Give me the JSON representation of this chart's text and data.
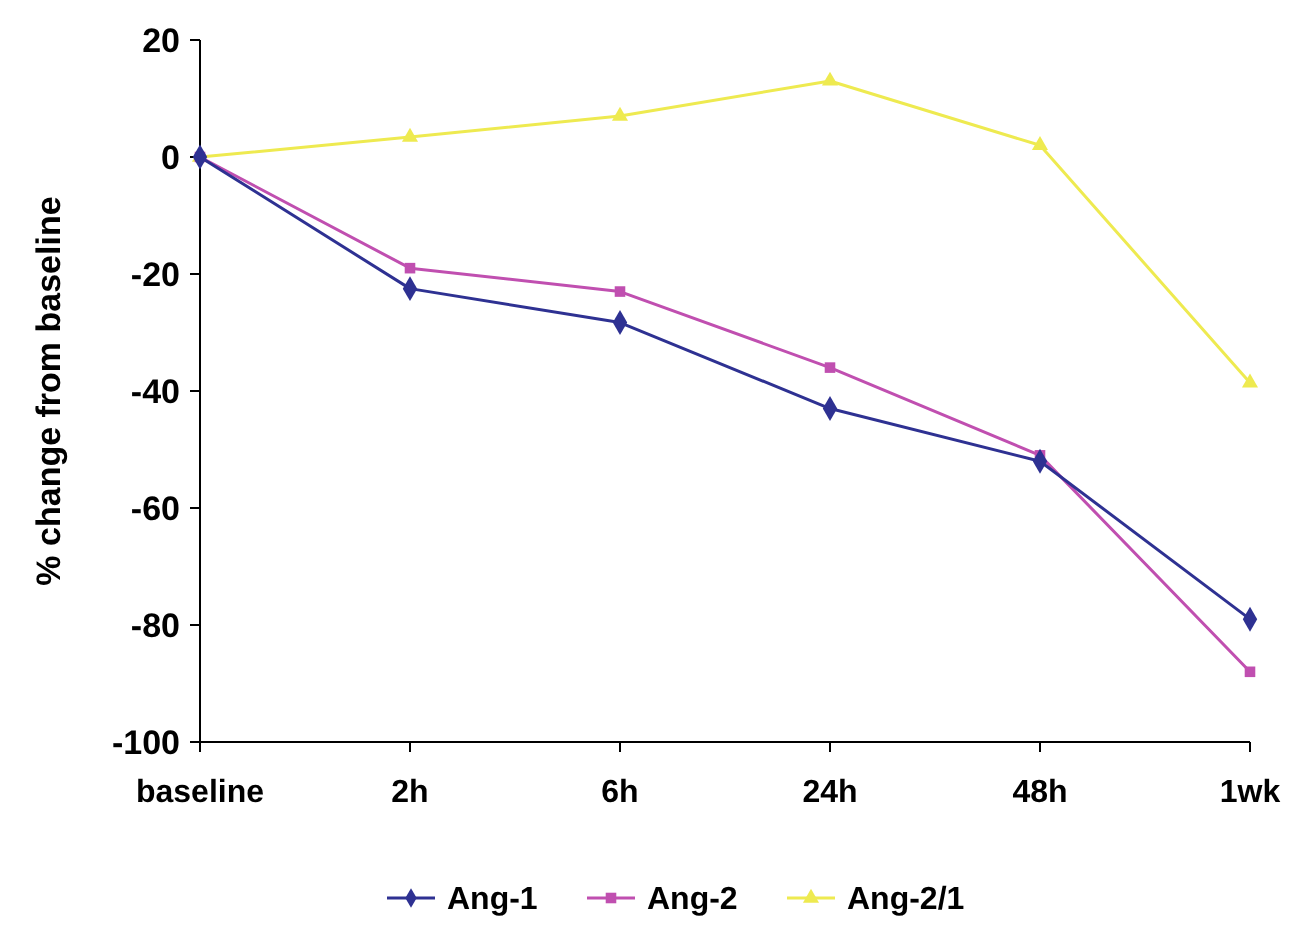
{
  "chart_data": {
    "type": "line",
    "ylabel": "% change from baseline",
    "categories": [
      "baseline",
      "2h",
      "6h",
      "24h",
      "48h",
      "1wk"
    ],
    "ylim": [
      -100,
      20
    ],
    "yticks": [
      -100,
      -80,
      -60,
      -40,
      -20,
      0,
      20
    ],
    "grid": false,
    "legend": "bottom",
    "series": [
      {
        "name": "Ang-1",
        "color": "#2e3192",
        "marker": "diamond",
        "values": [
          0,
          -22.5,
          -28.3,
          -43,
          -52,
          -79
        ]
      },
      {
        "name": "Ang-2",
        "color": "#c04fb0",
        "marker": "square",
        "values": [
          0,
          -19,
          -23,
          -36,
          -51,
          -88
        ]
      },
      {
        "name": "Ang-2/1",
        "color": "#eeea50",
        "marker": "triangle",
        "values": [
          0,
          3.4,
          7,
          13,
          2,
          -38.6
        ]
      }
    ]
  }
}
